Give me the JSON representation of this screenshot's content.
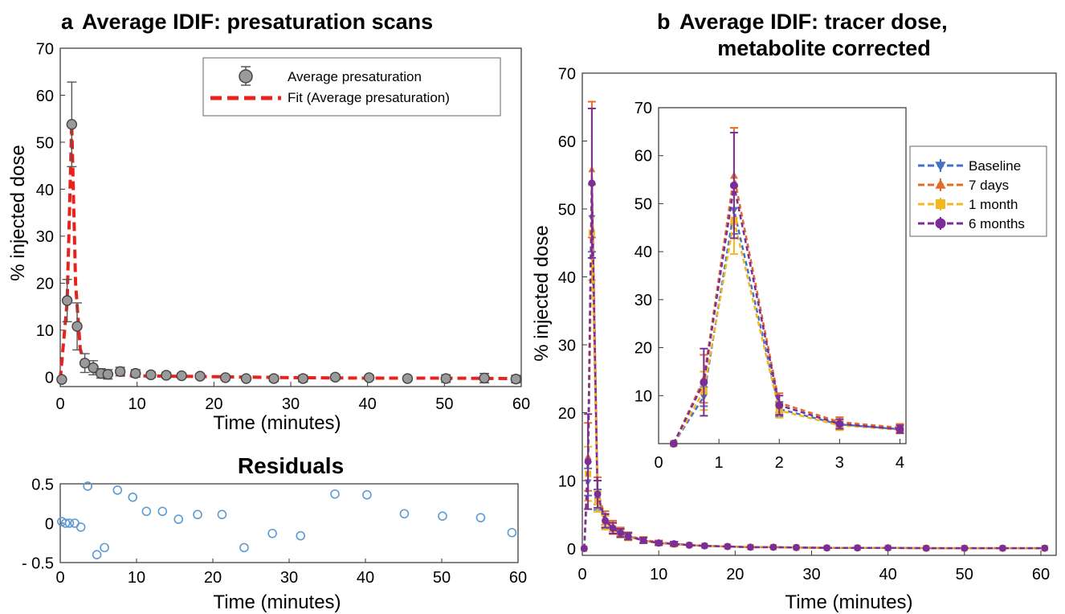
{
  "chart_data": [
    {
      "id": "a_main",
      "type": "scatter",
      "title": "Average IDIF: presaturation scans",
      "panel_letter": "a",
      "xlabel": "Time (minutes)",
      "ylabel": "% injected dose",
      "xlim": [
        0,
        60
      ],
      "ylim": [
        -2,
        70
      ],
      "xticks": [
        0,
        10,
        20,
        30,
        40,
        50,
        60
      ],
      "yticks": [
        0,
        10,
        20,
        30,
        40,
        50,
        60,
        70
      ],
      "legend": {
        "position": "top-right",
        "entries": [
          "Average presaturation",
          "Fit (Average presaturation)"
        ]
      },
      "series": [
        {
          "name": "Average presaturation",
          "kind": "points_errorbars",
          "color": "#9a9a9a",
          "points": [
            {
              "x": 0.2,
              "y": -0.5,
              "err": 0.3
            },
            {
              "x": 0.9,
              "y": 16.3,
              "err": 4.5
            },
            {
              "x": 1.5,
              "y": 53.8,
              "err": 9.0
            },
            {
              "x": 2.2,
              "y": 10.8,
              "err": 5.0
            },
            {
              "x": 3.2,
              "y": 3.0,
              "err": 2.0
            },
            {
              "x": 4.3,
              "y": 2.0,
              "err": 1.5
            },
            {
              "x": 5.3,
              "y": 0.8,
              "err": 1.0
            },
            {
              "x": 6.2,
              "y": 0.6,
              "err": 1.0
            },
            {
              "x": 7.8,
              "y": 1.2,
              "err": 0.9
            },
            {
              "x": 9.8,
              "y": 0.8,
              "err": 0.8
            },
            {
              "x": 11.8,
              "y": 0.5,
              "err": 0.6
            },
            {
              "x": 13.8,
              "y": 0.4,
              "err": 0.6
            },
            {
              "x": 15.8,
              "y": 0.3,
              "err": 0.5
            },
            {
              "x": 18.2,
              "y": 0.2,
              "err": 0.5
            },
            {
              "x": 21.5,
              "y": -0.1,
              "err": 0.5
            },
            {
              "x": 24.2,
              "y": -0.3,
              "err": 0.4
            },
            {
              "x": 27.8,
              "y": -0.3,
              "err": 0.6
            },
            {
              "x": 31.6,
              "y": -0.3,
              "err": 0.7
            },
            {
              "x": 35.8,
              "y": 0.0,
              "err": 0.6
            },
            {
              "x": 40.2,
              "y": -0.1,
              "err": 0.5
            },
            {
              "x": 45.2,
              "y": -0.3,
              "err": 0.5
            },
            {
              "x": 50.2,
              "y": -0.3,
              "err": 0.8
            },
            {
              "x": 55.2,
              "y": -0.2,
              "err": 1.0
            },
            {
              "x": 59.3,
              "y": -0.4,
              "err": 0.8
            }
          ]
        },
        {
          "name": "Fit (Average presaturation)",
          "kind": "line_dashed",
          "color": "#e8231e",
          "x": [
            0,
            0.9,
            1.5,
            2.0,
            2.6,
            3.2,
            4.3,
            6,
            10,
            20,
            30,
            40,
            50,
            60
          ],
          "y": [
            -0.5,
            16,
            54,
            20,
            6,
            2.5,
            1.2,
            0.6,
            0.3,
            0.1,
            -0.1,
            -0.2,
            -0.2,
            -0.3
          ]
        }
      ]
    },
    {
      "id": "a_residuals",
      "type": "scatter",
      "title": "Residuals",
      "xlabel": "Time (minutes)",
      "ylabel": "",
      "xlim": [
        0,
        60
      ],
      "ylim": [
        -0.5,
        0.5
      ],
      "xticks": [
        0,
        10,
        20,
        30,
        40,
        50,
        60
      ],
      "yticks": [
        -0.5,
        0,
        0.5
      ],
      "ytick_labels": [
        "- 0.5",
        "0",
        "0.5"
      ],
      "series": [
        {
          "color": "#5b9bd5",
          "x": [
            0.2,
            0.7,
            1.2,
            1.9,
            2.7,
            3.6,
            4.8,
            5.8,
            7.5,
            9.5,
            11.3,
            13.4,
            15.5,
            18.0,
            21.2,
            24.1,
            27.8,
            31.5,
            36.0,
            40.2,
            45.1,
            50.1,
            55.1,
            59.2
          ],
          "y": [
            0.02,
            0.0,
            0.0,
            0.0,
            -0.05,
            0.47,
            -0.4,
            -0.31,
            0.42,
            0.33,
            0.15,
            0.15,
            0.05,
            0.11,
            0.11,
            -0.31,
            -0.13,
            -0.16,
            0.37,
            0.36,
            0.12,
            0.09,
            0.07,
            -0.12
          ]
        }
      ]
    },
    {
      "id": "b_main",
      "type": "line",
      "title": "Average IDIF: tracer dose, metabolite corrected",
      "panel_letter": "b",
      "title_lines": [
        "Average IDIF: tracer dose,",
        "metabolite corrected"
      ],
      "xlabel": "Time (minutes)",
      "ylabel": "% injected dose",
      "xlim": [
        0,
        62
      ],
      "ylim": [
        -1,
        70
      ],
      "xticks": [
        0,
        10,
        20,
        30,
        40,
        50,
        60
      ],
      "yticks": [
        0,
        10,
        20,
        30,
        40,
        50,
        60,
        70
      ],
      "legend": {
        "position": "right",
        "entries": [
          "Baseline",
          "7 days",
          "1 month",
          "6 months"
        ]
      },
      "x": [
        0.25,
        0.75,
        1.25,
        2.0,
        3.0,
        4.0,
        5.0,
        6.0,
        8.0,
        10.0,
        12.0,
        14.0,
        16.0,
        19.0,
        22.0,
        25.0,
        28.0,
        32.0,
        36.0,
        40.0,
        45.0,
        50.0,
        55.0,
        60.5
      ],
      "series": [
        {
          "name": "Baseline",
          "color": "#4472c4",
          "marker": "triangle-down",
          "y": [
            0,
            9.8,
            48.7,
            7.2,
            4.0,
            3.0,
            2.3,
            1.8,
            1.2,
            0.8,
            0.7,
            0.5,
            0.4,
            0.3,
            0.2,
            0.2,
            0.15,
            0.1,
            0.1,
            0.1,
            0.05,
            0.05,
            0.05,
            0.05
          ],
          "err": [
            0,
            2,
            5,
            1.5,
            1,
            0.8,
            0.6,
            0.5,
            0.4,
            0.3,
            0.3,
            0.2,
            0.2,
            0.2,
            0.2,
            0.2,
            0.2,
            0.2,
            0.2,
            0.2,
            0.2,
            0.2,
            0.2,
            0.2
          ]
        },
        {
          "name": "7 days",
          "color": "#e46c2a",
          "marker": "triangle-up",
          "y": [
            0,
            13.5,
            55.8,
            8.5,
            4.5,
            3.3,
            2.5,
            1.9,
            1.3,
            0.9,
            0.7,
            0.5,
            0.4,
            0.3,
            0.2,
            0.2,
            0.15,
            0.1,
            0.1,
            0.1,
            0.05,
            0.05,
            0.05,
            0.05
          ],
          "err": [
            0,
            5,
            10,
            2,
            1,
            0.8,
            0.6,
            0.5,
            0.4,
            0.3,
            0.3,
            0.2,
            0.2,
            0.2,
            0.2,
            0.2,
            0.2,
            0.2,
            0.2,
            0.2,
            0.2,
            0.2,
            0.2,
            0.2
          ]
        },
        {
          "name": "1 month",
          "color": "#f2b81f",
          "marker": "square",
          "y": [
            0,
            11.0,
            46.5,
            6.9,
            3.8,
            2.9,
            2.2,
            1.7,
            1.2,
            0.8,
            0.6,
            0.5,
            0.4,
            0.3,
            0.2,
            0.2,
            0.15,
            0.1,
            0.1,
            0.1,
            0.05,
            0.05,
            0.05,
            0.05
          ],
          "err": [
            0,
            4,
            7,
            1.5,
            1,
            0.8,
            0.6,
            0.5,
            0.4,
            0.3,
            0.3,
            0.2,
            0.2,
            0.2,
            0.2,
            0.2,
            0.2,
            0.2,
            0.2,
            0.2,
            0.2,
            0.2,
            0.2,
            0.2
          ]
        },
        {
          "name": "6 months",
          "color": "#7b2d9a",
          "marker": "circle",
          "y": [
            0,
            12.8,
            53.8,
            8.0,
            4.1,
            3.0,
            2.3,
            1.8,
            1.2,
            0.8,
            0.7,
            0.5,
            0.4,
            0.3,
            0.2,
            0.2,
            0.15,
            0.1,
            0.1,
            0.1,
            0.05,
            0.05,
            0.05,
            0.05
          ],
          "err": [
            0,
            7,
            11,
            2,
            1,
            0.8,
            0.6,
            0.5,
            0.4,
            0.3,
            0.3,
            0.2,
            0.2,
            0.2,
            0.2,
            0.2,
            0.2,
            0.2,
            0.2,
            0.2,
            0.2,
            0.2,
            0.2,
            0.2
          ]
        }
      ]
    },
    {
      "id": "b_inset",
      "type": "line",
      "title": "",
      "xlabel": "",
      "ylabel": "",
      "xlim": [
        0,
        4.1
      ],
      "ylim": [
        0,
        70
      ],
      "xticks": [
        0,
        1,
        2,
        3,
        4
      ],
      "yticks": [
        10,
        20,
        30,
        40,
        50,
        60,
        70
      ],
      "x": [
        0.25,
        0.75,
        1.25,
        2.0,
        3.0,
        4.0
      ],
      "series": [
        {
          "name": "Baseline",
          "color": "#4472c4",
          "marker": "triangle-down",
          "y": [
            0,
            9.8,
            48.7,
            7.2,
            4.0,
            3.0
          ],
          "err": [
            0,
            2,
            5,
            1.5,
            1,
            0.8
          ]
        },
        {
          "name": "7 days",
          "color": "#e46c2a",
          "marker": "triangle-up",
          "y": [
            0,
            13.5,
            55.8,
            8.5,
            4.5,
            3.3
          ],
          "err": [
            0,
            5,
            10,
            2,
            1,
            0.8
          ]
        },
        {
          "name": "1 month",
          "color": "#f2b81f",
          "marker": "square",
          "y": [
            0,
            11.0,
            46.5,
            6.9,
            3.8,
            2.9
          ],
          "err": [
            0,
            4,
            7,
            1.5,
            1,
            0.8
          ]
        },
        {
          "name": "6 months",
          "color": "#7b2d9a",
          "marker": "circle",
          "y": [
            0,
            12.8,
            53.8,
            8.0,
            4.1,
            3.0
          ],
          "err": [
            0,
            7,
            11,
            2,
            1,
            0.8
          ]
        }
      ]
    }
  ]
}
